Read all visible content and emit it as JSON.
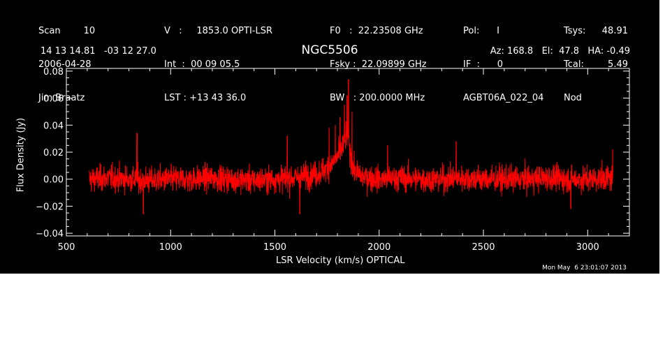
{
  "header": {
    "col1": [
      "Scan        10",
      "2006-04-28",
      "Jim Braatz"
    ],
    "col2": [
      "V   :     1853.0 OPTI-LSR",
      "Int  :  00 09 05.5",
      "LST : +13 43 36.0"
    ],
    "col3": [
      "F0   :  22.23508 GHz",
      "Fsky :  22.09899 GHz",
      "BW   : 200.0000 MHz"
    ],
    "col4": [
      "Pol:      I",
      "IF  :      0",
      "AGBT06A_022_04"
    ],
    "col5": [
      "Tsys:",
      "Tcal:",
      "Nod"
    ],
    "col6": [
      "48.91",
      "5.49",
      ""
    ]
  },
  "coords": "14 13 14.81   -03 12 27.0",
  "object": "NGC5506",
  "azelha": "Az: 168.8   El:  47.8   HA: -0.49",
  "timestamp": "Mon May  6 23:01:07 2013",
  "colors": {
    "background": "#000000",
    "foreground": "#ffffff",
    "trace": "#ff0000"
  },
  "chart_data": {
    "type": "line",
    "title": "NGC5506",
    "xlabel": "LSR Velocity (km/s) OPTICAL",
    "ylabel": "Flux Density (Jy)",
    "xlim": [
      500,
      3200
    ],
    "ylim": [
      -0.042,
      0.082
    ],
    "xticks": [
      500,
      1000,
      1500,
      2000,
      2500,
      3000
    ],
    "yticks": [
      -0.04,
      -0.02,
      0.0,
      0.02,
      0.04,
      0.06,
      0.08
    ],
    "ytick_labels": [
      "−0.04",
      "−0.02",
      "0.00",
      "0.02",
      "0.04",
      "0.06",
      "0.08"
    ],
    "grid": false,
    "series": [
      {
        "color": "#ff0000",
        "x_start": 610,
        "x_end": 3120,
        "noise_rms": 0.008,
        "baseline": 0.0,
        "points": [
          {
            "x": 610,
            "y": 0.0
          },
          {
            "x": 700,
            "y": 0.001
          },
          {
            "x": 800,
            "y": 0.0
          },
          {
            "x": 900,
            "y": -0.001
          },
          {
            "x": 1000,
            "y": 0.0
          },
          {
            "x": 1100,
            "y": 0.0
          },
          {
            "x": 1200,
            "y": 0.001
          },
          {
            "x": 1300,
            "y": 0.0
          },
          {
            "x": 1400,
            "y": -0.001
          },
          {
            "x": 1500,
            "y": 0.0
          },
          {
            "x": 1600,
            "y": 0.001
          },
          {
            "x": 1700,
            "y": 0.004
          },
          {
            "x": 1750,
            "y": 0.008
          },
          {
            "x": 1790,
            "y": 0.014
          },
          {
            "x": 1820,
            "y": 0.022
          },
          {
            "x": 1840,
            "y": 0.03
          },
          {
            "x": 1850,
            "y": 0.033
          },
          {
            "x": 1860,
            "y": 0.02
          },
          {
            "x": 1880,
            "y": 0.006
          },
          {
            "x": 1920,
            "y": 0.002
          },
          {
            "x": 2000,
            "y": 0.0
          },
          {
            "x": 2100,
            "y": 0.001
          },
          {
            "x": 2200,
            "y": 0.0
          },
          {
            "x": 2300,
            "y": 0.0
          },
          {
            "x": 2400,
            "y": 0.001
          },
          {
            "x": 2500,
            "y": 0.0
          },
          {
            "x": 2600,
            "y": 0.0
          },
          {
            "x": 2700,
            "y": 0.0
          },
          {
            "x": 2800,
            "y": 0.001
          },
          {
            "x": 2900,
            "y": 0.0
          },
          {
            "x": 3000,
            "y": 0.0
          },
          {
            "x": 3120,
            "y": 0.001
          }
        ],
        "spikes": [
          {
            "x": 1852,
            "y": 0.074
          },
          {
            "x": 1845,
            "y": 0.062
          },
          {
            "x": 1834,
            "y": 0.055
          },
          {
            "x": 1812,
            "y": 0.046
          },
          {
            "x": 1790,
            "y": 0.04
          },
          {
            "x": 1760,
            "y": 0.038
          },
          {
            "x": 1870,
            "y": 0.05
          },
          {
            "x": 840,
            "y": 0.034
          },
          {
            "x": 1560,
            "y": 0.032
          },
          {
            "x": 2370,
            "y": 0.028
          },
          {
            "x": 1620,
            "y": -0.026
          },
          {
            "x": 870,
            "y": -0.026
          },
          {
            "x": 2040,
            "y": 0.025
          },
          {
            "x": 2920,
            "y": -0.022
          },
          {
            "x": 3120,
            "y": 0.022
          }
        ]
      }
    ]
  }
}
